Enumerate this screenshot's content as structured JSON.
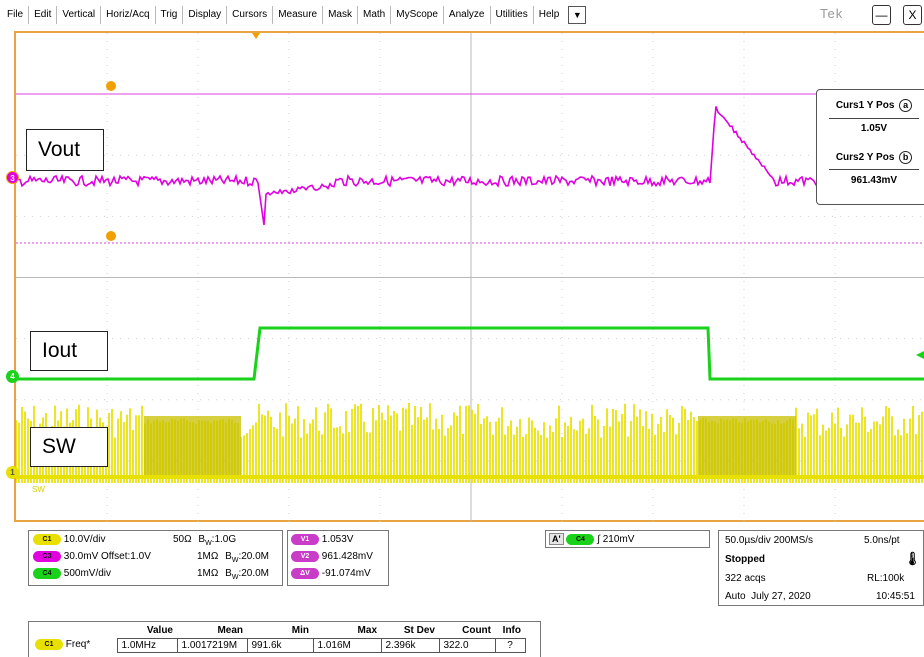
{
  "menu": {
    "items": [
      "File",
      "Edit",
      "Vertical",
      "Horiz/Acq",
      "Trig",
      "Display",
      "Cursors",
      "Measure",
      "Mask",
      "Math",
      "MyScope",
      "Analyze",
      "Utilities",
      "Help"
    ],
    "dropdown_symbol": "▼",
    "brand": "Tek",
    "minimize": "—",
    "close": "X"
  },
  "screen": {
    "labels": {
      "vout": "Vout",
      "iout": "Iout",
      "sw": "SW"
    },
    "cursor_markers": {
      "a": "a",
      "b": "b"
    },
    "channel_markers": {
      "c3": "3",
      "c4": "4",
      "c1": "1"
    },
    "sw_small": "SW",
    "cursor_readout": {
      "curs1_title": "Curs1 Y Pos",
      "curs1_letter": "a",
      "curs1_value": "1.05V",
      "curs2_title": "Curs2 Y Pos",
      "curs2_letter": "b",
      "curs2_value": "961.43mV"
    }
  },
  "colors": {
    "grid_border": "#e8a442",
    "ch1": "#e8e000",
    "ch3": "#e000e0",
    "ch4": "#19d219",
    "cursor": "#e040e0",
    "marker_orange": "#f0a000"
  },
  "channels": [
    {
      "pill": "C1",
      "color": "#e8e000",
      "scale": "10.0V/div",
      "offset": "",
      "imp": "50Ω",
      "bw_prefix": "B",
      "bw_sub": "W",
      "bw": ":1.0G"
    },
    {
      "pill": "C3",
      "color": "#e000e0",
      "scale": "30.0mV",
      "offset": "Offset:1.0V",
      "imp": "1MΩ",
      "bw_prefix": "B",
      "bw_sub": "W",
      "bw": ":20.0M"
    },
    {
      "pill": "C4",
      "color": "#19d219",
      "scale": "500mV/div",
      "offset": "",
      "imp": "1MΩ",
      "bw_prefix": "B",
      "bw_sub": "W",
      "bw": ":20.0M"
    }
  ],
  "cursor_values": [
    {
      "pill": "V1",
      "value": "1.053V"
    },
    {
      "pill": "V2",
      "value": "961.428mV"
    },
    {
      "pill": "ΔV",
      "value": "-91.074mV"
    }
  ],
  "trigger": {
    "a_label": "A'",
    "pill": "C4",
    "edge": "∫",
    "level": "210mV"
  },
  "acq": {
    "timebase": "50.0µs/div",
    "rate": "200MS/s",
    "resolution": "5.0ns/pt",
    "state": "Stopped",
    "acqs": "322 acqs",
    "rl": "RL:100k",
    "mode": "Auto",
    "date": "July 27, 2020",
    "time": "10:45:51"
  },
  "measurements": {
    "headers": [
      "Value",
      "Mean",
      "Min",
      "Max",
      "St Dev",
      "Count",
      "Info"
    ],
    "rows": [
      {
        "pill": "C1",
        "name": "Freq*",
        "value": "1.0MHz",
        "mean": "1.0017219M",
        "min": "991.6k",
        "max": "1.016M",
        "stdev": "2.396k",
        "count": "322.0",
        "info": "?"
      }
    ]
  }
}
